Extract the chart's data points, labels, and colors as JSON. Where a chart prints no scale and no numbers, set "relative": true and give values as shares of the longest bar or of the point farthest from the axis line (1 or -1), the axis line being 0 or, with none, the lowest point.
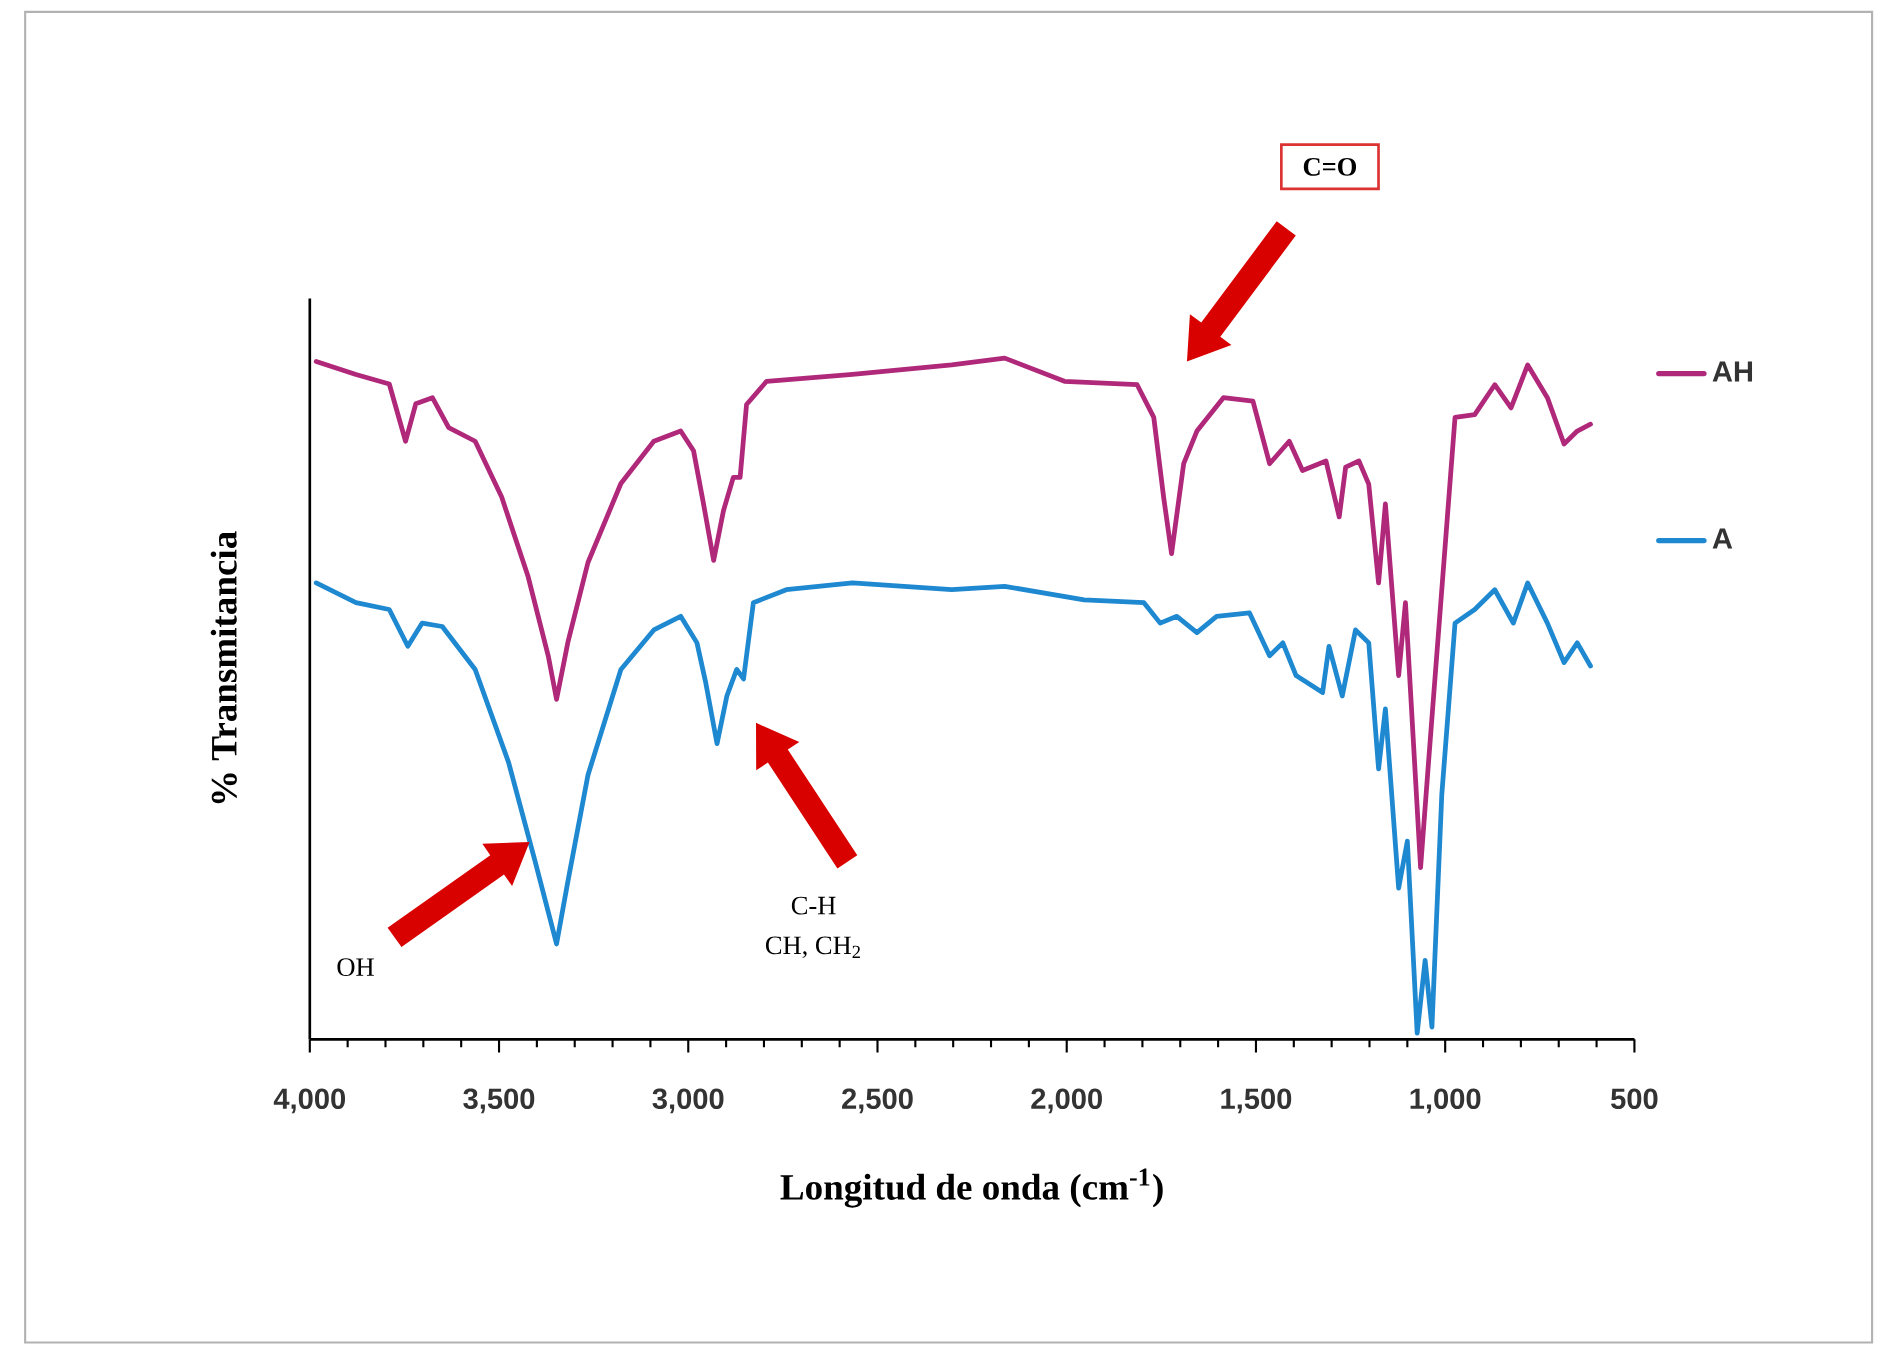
{
  "chart_data": {
    "type": "line",
    "xlabel": "Longitud de onda (cm$^{-1}$)",
    "ylabel": "% Transmitancia",
    "relative": true,
    "xlim": [
      4000,
      500
    ],
    "xticks": [
      {
        "value": 4000,
        "label": "4,000"
      },
      {
        "value": 3500,
        "label": "3,500"
      },
      {
        "value": 3000,
        "label": "3,000"
      },
      {
        "value": 2500,
        "label": "2,500"
      },
      {
        "value": 2000,
        "label": "2,000"
      },
      {
        "value": 1500,
        "label": "1,500"
      },
      {
        "value": 1000,
        "label": "1,000"
      },
      500
    ],
    "legend": "right",
    "annotations": [
      "C=O",
      "OH",
      "C-H",
      "CH, CH$_{2}$"
    ],
    "series": [
      {
        "name": "AH",
        "color": "#b0287a",
        "x": [
          3983,
          3878,
          3790,
          3747,
          3720,
          3676,
          3633,
          3563,
          3493,
          3423,
          3370,
          3348,
          3318,
          3265,
          3178,
          3091,
          3020,
          2986,
          2960,
          2933,
          2907,
          2881,
          2863,
          2846,
          2793,
          2566,
          2304,
          2164,
          2006,
          1814,
          1770,
          1744,
          1723,
          1691,
          1656,
          1586,
          1508,
          1464,
          1412,
          1377,
          1315,
          1280,
          1263,
          1228,
          1202,
          1176,
          1158,
          1123,
          1105,
          1065,
          1044,
          974,
          922,
          869,
          826,
          782,
          730,
          686,
          651,
          616
        ],
        "values": [
          0.995,
          0.976,
          0.962,
          0.878,
          0.933,
          0.942,
          0.898,
          0.878,
          0.796,
          0.679,
          0.563,
          0.499,
          0.583,
          0.7,
          0.816,
          0.878,
          0.893,
          0.864,
          0.787,
          0.703,
          0.776,
          0.825,
          0.825,
          0.932,
          0.966,
          0.976,
          0.99,
          1.0,
          0.966,
          0.961,
          0.913,
          0.796,
          0.713,
          0.845,
          0.893,
          0.942,
          0.937,
          0.845,
          0.878,
          0.835,
          0.849,
          0.767,
          0.84,
          0.849,
          0.815,
          0.67,
          0.786,
          0.534,
          0.641,
          0.252,
          0.407,
          0.913,
          0.917,
          0.961,
          0.927,
          0.99,
          0.942,
          0.874,
          0.893,
          0.903
        ]
      },
      {
        "name": "A",
        "color": "#1e88d0",
        "x": [
          3983,
          3878,
          3790,
          3741,
          3703,
          3650,
          3563,
          3475,
          3405,
          3348,
          3318,
          3265,
          3178,
          3091,
          3020,
          2977,
          2954,
          2924,
          2898,
          2872,
          2854,
          2828,
          2741,
          2566,
          2304,
          2164,
          1954,
          1796,
          1753,
          1709,
          1656,
          1604,
          1517,
          1464,
          1429,
          1394,
          1324,
          1307,
          1272,
          1237,
          1202,
          1176,
          1158,
          1123,
          1100,
          1074,
          1053,
          1035,
          1009,
          974,
          922,
          869,
          820,
          782,
          730,
          686,
          651,
          616
        ],
        "values": [
          0.67,
          0.641,
          0.631,
          0.577,
          0.611,
          0.606,
          0.543,
          0.407,
          0.262,
          0.14,
          0.232,
          0.388,
          0.543,
          0.601,
          0.621,
          0.582,
          0.524,
          0.434,
          0.504,
          0.543,
          0.529,
          0.641,
          0.66,
          0.67,
          0.66,
          0.665,
          0.645,
          0.641,
          0.611,
          0.621,
          0.597,
          0.621,
          0.626,
          0.563,
          0.582,
          0.534,
          0.509,
          0.577,
          0.504,
          0.601,
          0.582,
          0.397,
          0.485,
          0.222,
          0.291,
          0.009,
          0.116,
          0.018,
          0.359,
          0.611,
          0.631,
          0.66,
          0.611,
          0.67,
          0.611,
          0.553,
          0.582,
          0.548
        ]
      }
    ]
  }
}
